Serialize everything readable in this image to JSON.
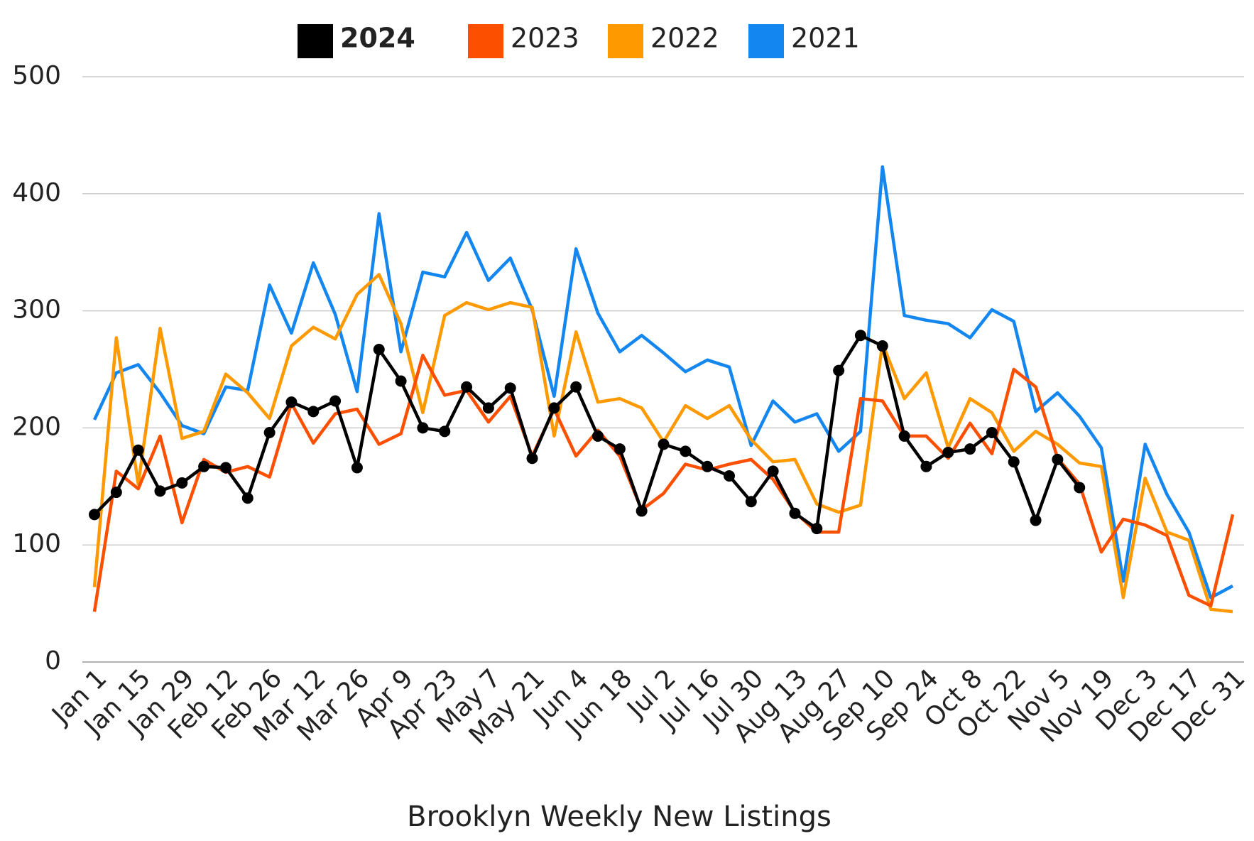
{
  "chart_data": {
    "type": "line",
    "title": "Brooklyn Weekly New Listings",
    "categories": [
      "Jan 1",
      null,
      "Jan 15",
      null,
      "Jan 29",
      null,
      "Feb 12",
      null,
      "Feb 26",
      null,
      "Mar 12",
      null,
      "Mar 26",
      null,
      "Apr 9",
      null,
      "Apr 23",
      null,
      "May 7",
      null,
      "May 21",
      null,
      "Jun 4",
      null,
      "Jun 18",
      null,
      "Jul 2",
      null,
      "Jul 16",
      null,
      "Jul 30",
      null,
      "Aug 13",
      null,
      "Aug 27",
      null,
      "Sep 10",
      null,
      "Sep 24",
      null,
      "Oct 8",
      null,
      "Oct 22",
      null,
      "Nov 5",
      null,
      "Nov 19",
      null,
      "Dec 3",
      null,
      "Dec 17",
      null,
      "Dec 31"
    ],
    "series": [
      {
        "name": "2024",
        "color": "#000000",
        "markers": true,
        "bold": true,
        "values": [
          126,
          145,
          181,
          146,
          153,
          167,
          166,
          140,
          196,
          222,
          214,
          223,
          166,
          267,
          240,
          200,
          197,
          235,
          217,
          234,
          174,
          217,
          235,
          193,
          182,
          129,
          186,
          180,
          167,
          159,
          137,
          163,
          127,
          114,
          249,
          279,
          270,
          193,
          167,
          179,
          182,
          196,
          171,
          121,
          173,
          149,
          null,
          null,
          null,
          null,
          null,
          null,
          null
        ]
      },
      {
        "name": "2023",
        "color": "#fc4f00",
        "values": [
          43,
          163,
          148,
          193,
          119,
          173,
          162,
          167,
          158,
          221,
          187,
          212,
          216,
          186,
          195,
          262,
          228,
          232,
          205,
          227,
          176,
          216,
          176,
          198,
          176,
          130,
          144,
          169,
          164,
          169,
          173,
          156,
          128,
          111,
          111,
          225,
          223,
          193,
          193,
          174,
          204,
          178,
          250,
          235,
          174,
          152,
          94,
          122,
          117,
          108,
          57,
          48,
          126
        ]
      },
      {
        "name": "2022",
        "color": "#ff9900",
        "values": [
          64,
          277,
          152,
          285,
          191,
          197,
          246,
          230,
          208,
          270,
          286,
          276,
          314,
          331,
          289,
          213,
          296,
          307,
          301,
          307,
          303,
          193,
          282,
          222,
          225,
          217,
          188,
          219,
          208,
          219,
          190,
          171,
          173,
          135,
          128,
          134,
          272,
          225,
          247,
          183,
          225,
          213,
          180,
          197,
          186,
          170,
          167,
          55,
          157,
          111,
          104,
          45,
          43
        ]
      },
      {
        "name": "2021",
        "color": "#1386f0",
        "values": [
          207,
          247,
          254,
          230,
          202,
          195,
          235,
          232,
          322,
          281,
          341,
          297,
          231,
          383,
          265,
          333,
          329,
          367,
          326,
          345,
          301,
          227,
          353,
          298,
          265,
          279,
          264,
          248,
          258,
          252,
          185,
          223,
          205,
          212,
          180,
          197,
          423,
          296,
          292,
          289,
          277,
          301,
          291,
          214,
          230,
          210,
          183,
          69,
          186,
          143,
          111,
          55,
          65
        ]
      }
    ],
    "ylim": [
      0,
      500
    ],
    "yticks": [
      0,
      100,
      200,
      300,
      400,
      500
    ],
    "grid": true
  }
}
